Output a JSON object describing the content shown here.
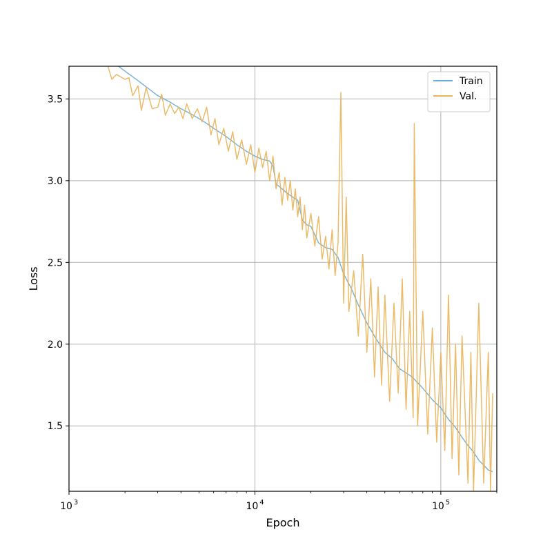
{
  "chart_data": {
    "type": "line",
    "title": "",
    "xlabel": "Epoch",
    "ylabel": "Loss",
    "xscale": "log",
    "xlim": [
      1000,
      200000
    ],
    "ylim": [
      1.1,
      3.7
    ],
    "grid": true,
    "legend_position": "top-right",
    "x_ticks": [
      {
        "value": 1000,
        "base": "10",
        "exp": "3"
      },
      {
        "value": 10000,
        "base": "10",
        "exp": "4"
      },
      {
        "value": 100000,
        "base": "10",
        "exp": "5"
      }
    ],
    "y_ticks": [
      {
        "value": 1.5,
        "label": "1.5"
      },
      {
        "value": 2.0,
        "label": "2.0"
      },
      {
        "value": 2.5,
        "label": "2.5"
      },
      {
        "value": 3.0,
        "label": "3.0"
      },
      {
        "value": 3.5,
        "label": "3.5"
      }
    ],
    "series": [
      {
        "name": "Train",
        "color": "#6baed6",
        "x": [
          1600,
          1800,
          2000,
          2300,
          2700,
          3000,
          3500,
          4000,
          4500,
          5000,
          5500,
          6000,
          7000,
          8000,
          9000,
          10000,
          11000,
          12000,
          12500,
          13000,
          14000,
          15000,
          16000,
          17000,
          18000,
          19000,
          20000,
          22000,
          24000,
          26000,
          28000,
          30000,
          33000,
          36000,
          40000,
          45000,
          50000,
          55000,
          60000,
          70000,
          80000,
          90000,
          100000,
          110000,
          120000,
          130000,
          140000,
          150000,
          160000,
          170000,
          180000,
          190000
        ],
        "y": [
          3.74,
          3.71,
          3.67,
          3.62,
          3.56,
          3.52,
          3.48,
          3.44,
          3.41,
          3.38,
          3.35,
          3.32,
          3.27,
          3.22,
          3.18,
          3.15,
          3.13,
          3.12,
          3.09,
          2.98,
          2.95,
          2.92,
          2.9,
          2.88,
          2.76,
          2.73,
          2.72,
          2.62,
          2.59,
          2.58,
          2.53,
          2.43,
          2.34,
          2.24,
          2.13,
          2.03,
          1.95,
          1.91,
          1.85,
          1.8,
          1.73,
          1.66,
          1.61,
          1.54,
          1.49,
          1.43,
          1.38,
          1.34,
          1.29,
          1.26,
          1.23,
          1.22
        ]
      },
      {
        "name": "Val.",
        "color": "#e9b45a",
        "x": [
          1600,
          1700,
          1800,
          2000,
          2100,
          2200,
          2350,
          2450,
          2600,
          2800,
          3000,
          3150,
          3300,
          3500,
          3700,
          3900,
          4100,
          4300,
          4600,
          4900,
          5200,
          5500,
          5800,
          6100,
          6400,
          6800,
          7200,
          7600,
          8000,
          8500,
          9000,
          9500,
          10000,
          10500,
          11000,
          11500,
          12000,
          12500,
          13000,
          13500,
          14000,
          14500,
          15000,
          15500,
          16000,
          16500,
          17000,
          17500,
          18000,
          18500,
          19000,
          20000,
          21000,
          22000,
          23000,
          24000,
          25000,
          26000,
          27000,
          28000,
          29000,
          30000,
          31000,
          32000,
          34000,
          36000,
          38000,
          40000,
          42000,
          44000,
          46000,
          48000,
          50000,
          53000,
          56000,
          59000,
          62000,
          65000,
          68000,
          71000,
          72000,
          75000,
          80000,
          85000,
          90000,
          95000,
          100000,
          105000,
          110000,
          115000,
          120000,
          125000,
          130000,
          140000,
          145000,
          150000,
          160000,
          170000,
          180000,
          185000,
          190000
        ],
        "y": [
          3.72,
          3.62,
          3.65,
          3.62,
          3.63,
          3.52,
          3.58,
          3.43,
          3.57,
          3.44,
          3.45,
          3.53,
          3.4,
          3.47,
          3.41,
          3.45,
          3.38,
          3.47,
          3.38,
          3.44,
          3.36,
          3.45,
          3.28,
          3.38,
          3.22,
          3.32,
          3.18,
          3.3,
          3.13,
          3.25,
          3.1,
          3.22,
          3.05,
          3.2,
          3.08,
          3.18,
          3.0,
          3.15,
          2.95,
          3.05,
          2.85,
          3.02,
          2.88,
          3.0,
          2.82,
          2.95,
          2.78,
          2.9,
          2.7,
          2.85,
          2.65,
          2.8,
          2.6,
          2.78,
          2.52,
          2.66,
          2.46,
          2.7,
          2.42,
          2.62,
          3.54,
          2.25,
          2.9,
          2.2,
          2.45,
          2.05,
          2.55,
          1.95,
          2.4,
          1.8,
          2.35,
          1.75,
          2.3,
          1.65,
          2.25,
          1.7,
          2.4,
          1.6,
          2.2,
          1.55,
          3.35,
          1.5,
          2.2,
          1.45,
          2.1,
          1.4,
          1.95,
          1.35,
          2.3,
          1.3,
          2.0,
          1.2,
          2.05,
          1.15,
          1.95,
          1.1,
          2.25,
          1.15,
          1.95,
          1.1,
          1.7
        ]
      }
    ]
  }
}
